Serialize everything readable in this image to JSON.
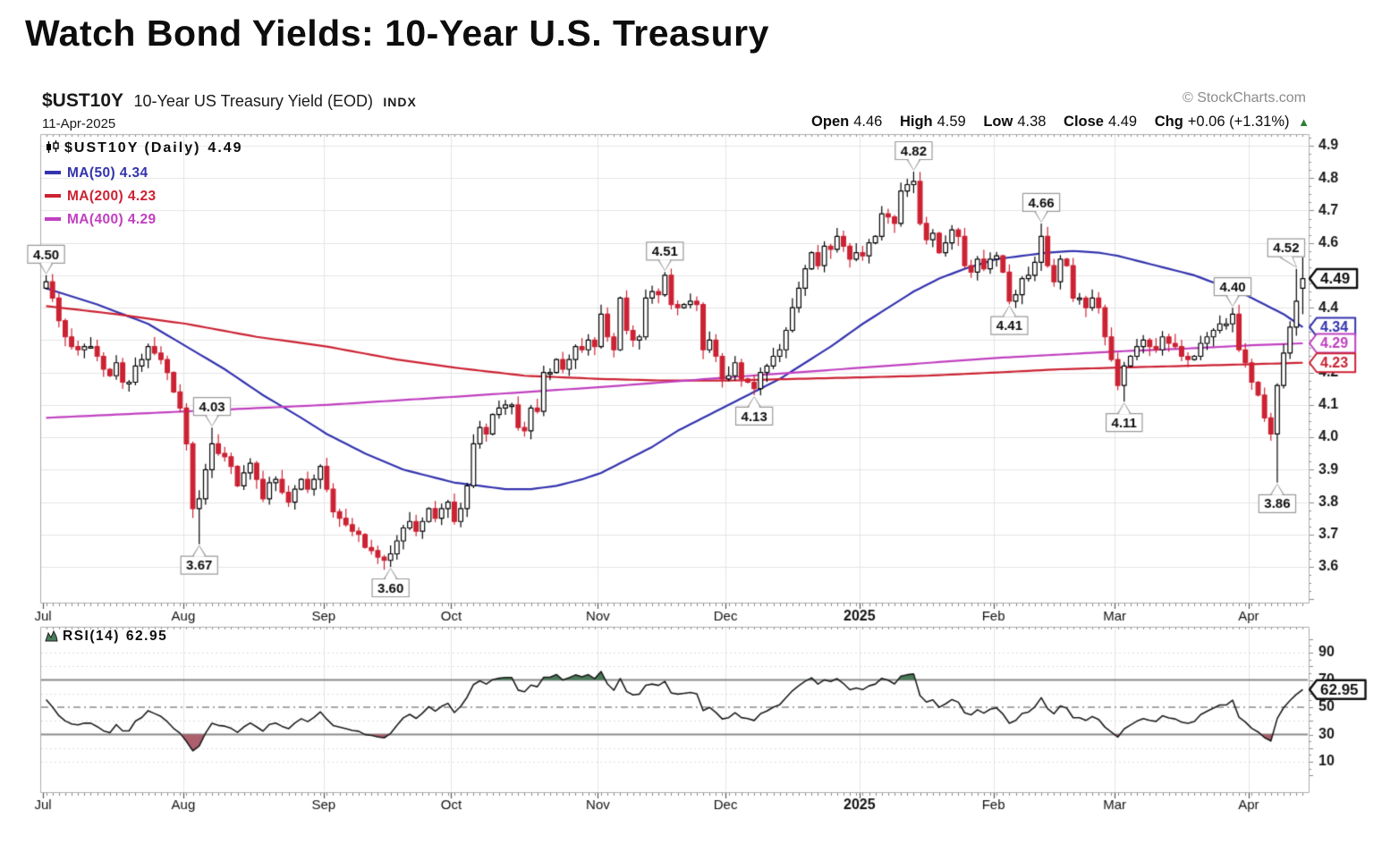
{
  "page": {
    "title": "Watch Bond Yields: 10-Year U.S. Treasury"
  },
  "header": {
    "symbol": "$UST10Y",
    "description": "10-Year US Treasury Yield (EOD)",
    "exchange": "INDX",
    "date": "11-Apr-2025",
    "watermark": "© StockCharts.com",
    "quote": {
      "open_label": "Open",
      "open": "4.46",
      "high_label": "High",
      "high": "4.59",
      "low_label": "Low",
      "low": "4.38",
      "close_label": "Close",
      "close": "4.49",
      "chg_label": "Chg",
      "chg": "+0.06 (+1.31%)",
      "arrow": "▲",
      "direction": "up",
      "direction_color": "#2e7d32"
    }
  },
  "legend": {
    "main": {
      "label": "$UST10Y (Daily)",
      "value": "4.49",
      "color": "#0d0d0d"
    },
    "mas": [
      {
        "label": "MA(50)",
        "value": "4.34",
        "color": "#3333ae"
      },
      {
        "label": "MA(200)",
        "value": "4.23",
        "color": "#cc2233"
      },
      {
        "label": "MA(400)",
        "value": "4.29",
        "color": "#c040c0"
      }
    ]
  },
  "rsi_legend": {
    "label": "RSI(14)",
    "value": "62.95"
  },
  "chart_data": {
    "type": "candlestick",
    "title": "$UST10Y 10-Year US Treasury Yield (EOD) INDX",
    "subtitle": "11-Apr-2025",
    "price_axis": {
      "min": 3.5,
      "max": 4.93,
      "ticks": [
        3.6,
        3.7,
        3.8,
        3.9,
        4.0,
        4.1,
        4.2,
        4.3,
        4.4,
        4.5,
        4.6,
        4.7,
        4.8,
        4.9
      ]
    },
    "months": [
      {
        "label": "Jul",
        "start": 0
      },
      {
        "label": "Aug",
        "start": 22
      },
      {
        "label": "Sep",
        "start": 44
      },
      {
        "label": "Oct",
        "start": 64
      },
      {
        "label": "Nov",
        "start": 87
      },
      {
        "label": "Dec",
        "start": 107
      },
      {
        "label": "2025",
        "start": 128,
        "bold": true
      },
      {
        "label": "Feb",
        "start": 149
      },
      {
        "label": "Mar",
        "start": 168
      },
      {
        "label": "Apr",
        "start": 189
      }
    ],
    "first_open": 4.46,
    "closes": [
      4.48,
      4.43,
      4.36,
      4.31,
      4.28,
      4.27,
      4.28,
      4.28,
      4.25,
      4.21,
      4.19,
      4.23,
      4.17,
      4.17,
      4.22,
      4.24,
      4.28,
      4.26,
      4.24,
      4.2,
      4.14,
      4.09,
      3.98,
      3.78,
      3.81,
      3.9,
      3.98,
      3.95,
      3.94,
      3.91,
      3.85,
      3.89,
      3.92,
      3.87,
      3.81,
      3.86,
      3.87,
      3.83,
      3.8,
      3.84,
      3.87,
      3.84,
      3.87,
      3.91,
      3.84,
      3.77,
      3.75,
      3.73,
      3.71,
      3.7,
      3.66,
      3.65,
      3.63,
      3.62,
      3.64,
      3.68,
      3.72,
      3.74,
      3.71,
      3.74,
      3.78,
      3.75,
      3.78,
      3.8,
      3.74,
      3.78,
      3.85,
      3.98,
      4.03,
      4.01,
      4.07,
      4.09,
      4.1,
      4.1,
      4.03,
      4.02,
      4.09,
      4.08,
      4.2,
      4.2,
      4.24,
      4.21,
      4.24,
      4.28,
      4.27,
      4.3,
      4.28,
      4.38,
      4.31,
      4.27,
      4.43,
      4.33,
      4.3,
      4.31,
      4.43,
      4.45,
      4.44,
      4.5,
      4.41,
      4.4,
      4.41,
      4.42,
      4.41,
      4.27,
      4.3,
      4.25,
      4.18,
      4.19,
      4.23,
      4.18,
      4.17,
      4.15,
      4.2,
      4.22,
      4.25,
      4.27,
      4.33,
      4.4,
      4.46,
      4.52,
      4.57,
      4.53,
      4.59,
      4.58,
      4.62,
      4.59,
      4.55,
      4.57,
      4.56,
      4.6,
      4.62,
      4.69,
      4.68,
      4.66,
      4.76,
      4.78,
      4.79,
      4.66,
      4.61,
      4.63,
      4.57,
      4.6,
      4.64,
      4.62,
      4.53,
      4.51,
      4.55,
      4.52,
      4.55,
      4.56,
      4.51,
      4.42,
      4.44,
      4.49,
      4.5,
      4.54,
      4.62,
      4.53,
      4.48,
      4.55,
      4.53,
      4.43,
      4.43,
      4.4,
      4.43,
      4.4,
      4.31,
      4.24,
      4.16,
      4.22,
      4.25,
      4.28,
      4.3,
      4.28,
      4.27,
      4.31,
      4.29,
      4.28,
      4.25,
      4.24,
      4.25,
      4.29,
      4.31,
      4.33,
      4.35,
      4.35,
      4.38,
      4.27,
      4.23,
      4.17,
      4.13,
      4.06,
      4.01,
      4.16,
      4.26,
      4.34,
      4.42,
      4.49
    ],
    "overrides": {
      "0": {
        "h": 4.5
      },
      "24": {
        "l": 3.67
      },
      "26": {
        "h": 4.03
      },
      "54": {
        "l": 3.6
      },
      "97": {
        "h": 4.51
      },
      "111": {
        "l": 4.13
      },
      "136": {
        "h": 4.82
      },
      "151": {
        "l": 4.41
      },
      "156": {
        "h": 4.66
      },
      "169": {
        "l": 4.11
      },
      "186": {
        "h": 4.4
      },
      "193": {
        "l": 3.86
      },
      "196": {
        "h": 4.52
      },
      "197": {
        "o": 4.46,
        "h": 4.59,
        "l": 4.38
      }
    },
    "annotations": [
      {
        "day": 0,
        "text": "4.50",
        "placement": "above",
        "price": 4.5
      },
      {
        "day": 26,
        "text": "4.03",
        "placement": "above",
        "price": 4.03
      },
      {
        "day": 24,
        "text": "3.67",
        "placement": "below",
        "price": 3.67
      },
      {
        "day": 54,
        "text": "3.60",
        "placement": "below",
        "price": 3.6
      },
      {
        "day": 97,
        "text": "4.51",
        "placement": "above",
        "price": 4.51
      },
      {
        "day": 111,
        "text": "4.13",
        "placement": "below",
        "price": 4.13
      },
      {
        "day": 136,
        "text": "4.82",
        "placement": "above",
        "price": 4.82
      },
      {
        "day": 151,
        "text": "4.41",
        "placement": "below",
        "price": 4.41
      },
      {
        "day": 156,
        "text": "4.66",
        "placement": "above",
        "price": 4.66
      },
      {
        "day": 169,
        "text": "4.11",
        "placement": "below",
        "price": 4.11
      },
      {
        "day": 186,
        "text": "4.40",
        "placement": "above",
        "price": 4.4
      },
      {
        "day": 193,
        "text": "3.86",
        "placement": "below",
        "price": 3.86
      },
      {
        "day": 196,
        "text": "4.52",
        "placement": "above",
        "price": 4.52
      }
    ],
    "axis_tags": [
      {
        "text": "4.49",
        "price": 4.49,
        "color": "#0d0d0d",
        "bold": true
      },
      {
        "text": "4.34",
        "price": 4.34,
        "color": "#3333ae"
      },
      {
        "text": "4.29",
        "price": 4.29,
        "color": "#c040c0"
      },
      {
        "text": "4.23",
        "price": 4.23,
        "color": "#cc2233"
      }
    ],
    "ma_series": [
      {
        "name": "MA(50)",
        "color": "#3333ae",
        "points": [
          [
            0,
            4.46
          ],
          [
            8,
            4.41
          ],
          [
            16,
            4.35
          ],
          [
            22,
            4.28
          ],
          [
            28,
            4.21
          ],
          [
            34,
            4.13
          ],
          [
            40,
            4.06
          ],
          [
            44,
            4.01
          ],
          [
            50,
            3.95
          ],
          [
            56,
            3.9
          ],
          [
            60,
            3.88
          ],
          [
            64,
            3.86
          ],
          [
            68,
            3.85
          ],
          [
            72,
            3.84
          ],
          [
            76,
            3.84
          ],
          [
            80,
            3.85
          ],
          [
            84,
            3.87
          ],
          [
            87,
            3.89
          ],
          [
            91,
            3.93
          ],
          [
            95,
            3.97
          ],
          [
            99,
            4.02
          ],
          [
            103,
            4.06
          ],
          [
            107,
            4.1
          ],
          [
            111,
            4.14
          ],
          [
            115,
            4.18
          ],
          [
            119,
            4.23
          ],
          [
            123,
            4.28
          ],
          [
            128,
            4.35
          ],
          [
            132,
            4.4
          ],
          [
            136,
            4.45
          ],
          [
            140,
            4.49
          ],
          [
            144,
            4.52
          ],
          [
            149,
            4.55
          ],
          [
            153,
            4.56
          ],
          [
            157,
            4.57
          ],
          [
            161,
            4.575
          ],
          [
            165,
            4.57
          ],
          [
            168,
            4.56
          ],
          [
            172,
            4.54
          ],
          [
            176,
            4.52
          ],
          [
            180,
            4.5
          ],
          [
            184,
            4.47
          ],
          [
            188,
            4.44
          ],
          [
            191,
            4.41
          ],
          [
            194,
            4.38
          ],
          [
            197,
            4.34
          ]
        ]
      },
      {
        "name": "MA(200)",
        "color": "#cc2233",
        "points": [
          [
            0,
            4.405
          ],
          [
            11,
            4.38
          ],
          [
            22,
            4.35
          ],
          [
            33,
            4.31
          ],
          [
            44,
            4.28
          ],
          [
            55,
            4.24
          ],
          [
            64,
            4.215
          ],
          [
            75,
            4.19
          ],
          [
            87,
            4.18
          ],
          [
            97,
            4.175
          ],
          [
            107,
            4.175
          ],
          [
            117,
            4.18
          ],
          [
            128,
            4.185
          ],
          [
            138,
            4.19
          ],
          [
            149,
            4.2
          ],
          [
            159,
            4.21
          ],
          [
            168,
            4.215
          ],
          [
            178,
            4.22
          ],
          [
            188,
            4.225
          ],
          [
            197,
            4.23
          ]
        ]
      },
      {
        "name": "MA(400)",
        "color": "#c040c0",
        "points": [
          [
            0,
            4.06
          ],
          [
            22,
            4.08
          ],
          [
            44,
            4.1
          ],
          [
            64,
            4.125
          ],
          [
            87,
            4.155
          ],
          [
            107,
            4.185
          ],
          [
            128,
            4.215
          ],
          [
            149,
            4.245
          ],
          [
            168,
            4.265
          ],
          [
            180,
            4.275
          ],
          [
            190,
            4.285
          ],
          [
            197,
            4.29
          ]
        ]
      }
    ],
    "rsi": {
      "period": 14,
      "overbought": 70,
      "midline": 50,
      "oversold": 30,
      "ticks": [
        90,
        70,
        50,
        30,
        10
      ],
      "grid_ticks": [
        10,
        20,
        40,
        60,
        80,
        90
      ],
      "seed_avg_gain": 0.02,
      "seed_avg_loss": 0.016,
      "last": 62.95,
      "last_value": "62.95"
    },
    "colors": {
      "up": "#ffffff",
      "up_border": "#000000",
      "down": "#cc2233",
      "grid": "#e4e4e4",
      "border": "#adadad",
      "tick": "#8a8a8a",
      "label": "#1a1a1a",
      "rsi_line": "#1c1c1c",
      "rsi_band": "#8a8a8a",
      "rsi_over_fill": "#4a7c59",
      "rsi_under_fill": "#ad5f6d"
    }
  }
}
